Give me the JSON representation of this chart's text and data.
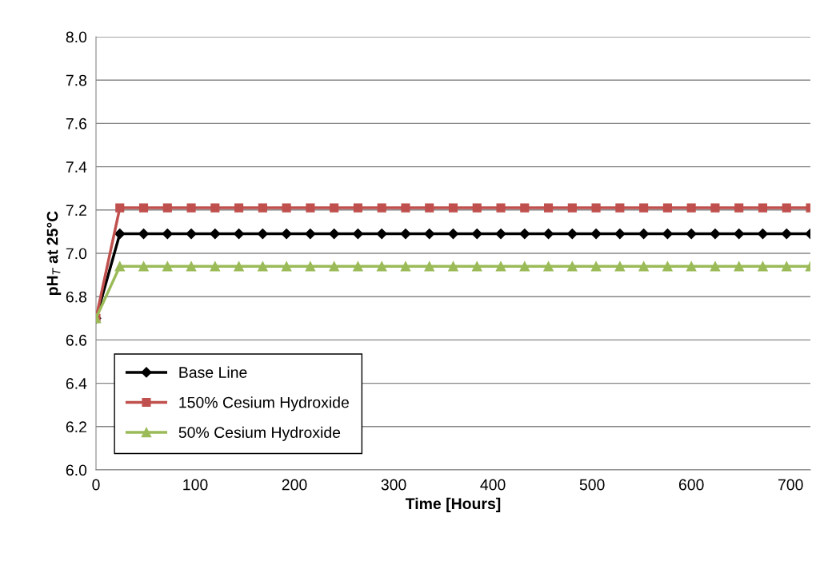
{
  "chart_data": {
    "type": "line",
    "xlabel": "Time [Hours]",
    "ylabel": "pH$_{T}$ at 25°C",
    "x": [
      0,
      24,
      48,
      72,
      96,
      120,
      144,
      168,
      192,
      216,
      240,
      264,
      288,
      312,
      336,
      360,
      384,
      408,
      432,
      456,
      480,
      504,
      528,
      552,
      576,
      600,
      624,
      648,
      672,
      696,
      720
    ],
    "series": [
      {
        "name": "Base Line",
        "color": "#000000",
        "marker": "diamond",
        "values": [
          6.7,
          7.09,
          7.09,
          7.09,
          7.09,
          7.09,
          7.09,
          7.09,
          7.09,
          7.09,
          7.09,
          7.09,
          7.09,
          7.09,
          7.09,
          7.09,
          7.09,
          7.09,
          7.09,
          7.09,
          7.09,
          7.09,
          7.09,
          7.09,
          7.09,
          7.09,
          7.09,
          7.09,
          7.09,
          7.09,
          7.09
        ]
      },
      {
        "name": "150% Cesium Hydroxide",
        "color": "#c0504d",
        "marker": "square",
        "values": [
          6.7,
          7.21,
          7.21,
          7.21,
          7.21,
          7.21,
          7.21,
          7.21,
          7.21,
          7.21,
          7.21,
          7.21,
          7.21,
          7.21,
          7.21,
          7.21,
          7.21,
          7.21,
          7.21,
          7.21,
          7.21,
          7.21,
          7.21,
          7.21,
          7.21,
          7.21,
          7.21,
          7.21,
          7.21,
          7.21,
          7.21
        ]
      },
      {
        "name": "50% Cesium Hydroxide",
        "color": "#9bbb59",
        "marker": "triangle",
        "values": [
          6.7,
          6.94,
          6.94,
          6.94,
          6.94,
          6.94,
          6.94,
          6.94,
          6.94,
          6.94,
          6.94,
          6.94,
          6.94,
          6.94,
          6.94,
          6.94,
          6.94,
          6.94,
          6.94,
          6.94,
          6.94,
          6.94,
          6.94,
          6.94,
          6.94,
          6.94,
          6.94,
          6.94,
          6.94,
          6.94,
          6.94
        ]
      }
    ],
    "xlim": [
      0,
      720
    ],
    "xticks": [
      0,
      100,
      200,
      300,
      400,
      500,
      600,
      700
    ],
    "ylim": [
      6.0,
      8.0
    ],
    "yticks": [
      {
        "value": 6.0,
        "label": "6.0"
      },
      {
        "value": 6.2,
        "label": "6.2"
      },
      {
        "value": 6.4,
        "label": "6.4"
      },
      {
        "value": 6.6,
        "label": "6.6"
      },
      {
        "value": 6.8,
        "label": "6.8"
      },
      {
        "value": 7.0,
        "label": "7.0"
      },
      {
        "value": 7.2,
        "label": "7.2"
      },
      {
        "value": 7.4,
        "label": "7.4"
      },
      {
        "value": 7.6,
        "label": "7.6"
      },
      {
        "value": 7.8,
        "label": "7.8"
      },
      {
        "value": 8.0,
        "label": "8.0"
      }
    ],
    "grid": "y",
    "legend": "bottom left",
    "line_style": "solid"
  }
}
